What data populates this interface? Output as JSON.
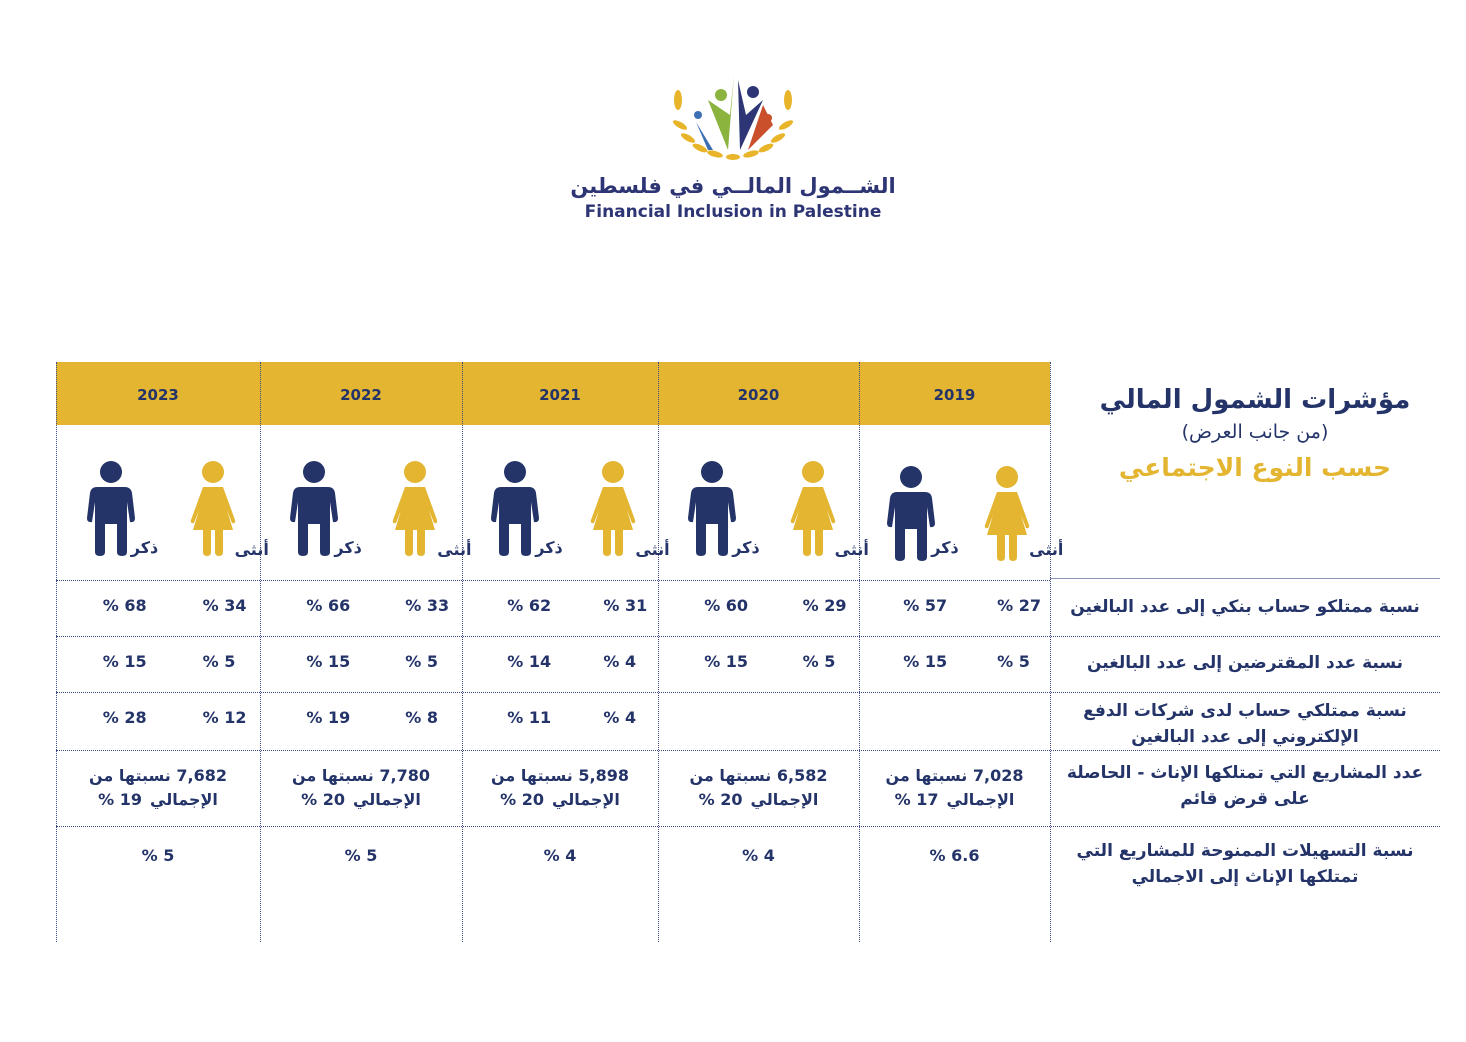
{
  "logo": {
    "arabic": "الشــمول المالــي في فلسطين",
    "english": "Financial Inclusion in Palestine"
  },
  "title": {
    "main": "مؤشرات الشمول المالي",
    "sub": "(من جانب العرض)",
    "by": "حسب النوع الاجتماعي"
  },
  "colors": {
    "navy": "#243469",
    "yellow": "#e3b530"
  },
  "gender_labels": {
    "male": "ذكر",
    "female": "أنثى"
  },
  "common": {
    "share_of_total": "نسبتها من",
    "total": "الإجمالي"
  },
  "row_labels": [
    "نسبة ممتلكو حساب بنكي إلى عدد البالغين",
    "نسبة عدد المقترضين إلى عدد البالغين",
    "نسبة ممتلكي حساب لدى شركات الدفع الإلكتروني إلى عدد البالغين",
    "عدد المشاريع التي تمتلكها الإناث -  الحاصلة على قرض قائم",
    "نسبة التسهيلات الممنوحة للمشاريع التي تمتلكها الإناث إلى الاجمالي"
  ],
  "years": [
    {
      "year": "2023",
      "bank": {
        "male": "% 68",
        "female": "% 34"
      },
      "borrowers": {
        "male": "% 15",
        "female": "% 5"
      },
      "epay": {
        "male": "% 28",
        "female": "% 12"
      },
      "projects": {
        "count": "7,682",
        "share": "% 19"
      },
      "facilities": "% 5"
    },
    {
      "year": "2022",
      "bank": {
        "male": "% 66",
        "female": "% 33"
      },
      "borrowers": {
        "male": "% 15",
        "female": "% 5"
      },
      "epay": {
        "male": "% 19",
        "female": "% 8"
      },
      "projects": {
        "count": "7,780",
        "share": "% 20"
      },
      "facilities": "% 5"
    },
    {
      "year": "2021",
      "bank": {
        "male": "% 62",
        "female": "% 31"
      },
      "borrowers": {
        "male": "% 14",
        "female": "% 4"
      },
      "epay": {
        "male": "% 11",
        "female": "% 4"
      },
      "projects": {
        "count": "5,898",
        "share": "% 20"
      },
      "facilities": "% 4"
    },
    {
      "year": "2020",
      "bank": {
        "male": "% 60",
        "female": "% 29"
      },
      "borrowers": {
        "male": "% 15",
        "female": "% 5"
      },
      "epay": {
        "male": null,
        "female": null
      },
      "projects": {
        "count": "6,582",
        "share": "% 20"
      },
      "facilities": "% 4"
    },
    {
      "year": "2019",
      "bank": {
        "male": "% 57",
        "female": "% 27"
      },
      "borrowers": {
        "male": "% 15",
        "female": "% 5"
      },
      "epay": {
        "male": null,
        "female": null
      },
      "projects": {
        "count": "7,028",
        "share": "% 17"
      },
      "facilities": "% 6.6"
    }
  ]
}
